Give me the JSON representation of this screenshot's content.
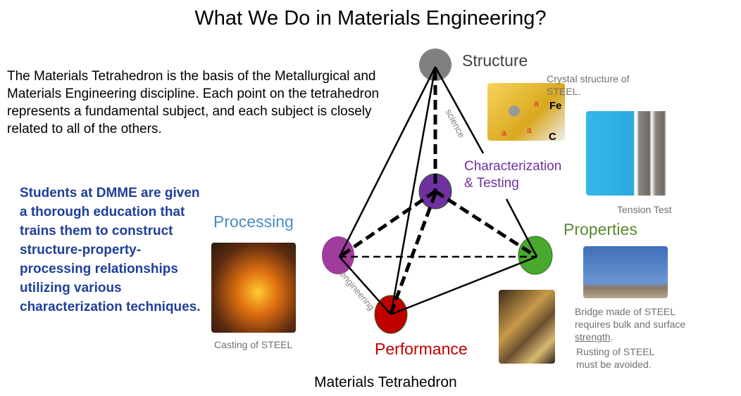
{
  "title": "What We Do in Materials Engineering?",
  "intro": "The Materials Tetrahedron is the basis of the Metallurgical and Materials Engineering discipline. Each point on the tetrahedron represents a fundamental subject, and each subject is closely related to all of the others.",
  "students": "Students at DMME are given a thorough education that trains them to construct structure-property-processing relationships utilizing various characterization techniques.",
  "nodes": {
    "structure": {
      "label": "Structure",
      "color": "#808080"
    },
    "characterization": {
      "label1": "Characterization",
      "label2": "& Testing",
      "color": "#7030a0"
    },
    "processing": {
      "label": "Processing",
      "color": "#a03c9c",
      "label_color": "#4a8bc4"
    },
    "properties": {
      "label": "Properties",
      "color": "#4aa82e",
      "label_color": "#5a8a2e"
    },
    "performance": {
      "label": "Performance",
      "color": "#c00000"
    }
  },
  "edge_labels": {
    "science": "science",
    "engineering": "engineering"
  },
  "captions": {
    "crystal": "Crystal structure of STEEL.",
    "fe": "Fe",
    "c": "C",
    "a": "a",
    "tension": "Tension Test",
    "casting": "Casting of STEEL",
    "bridge_1": "Bridge made of STEEL requires bulk and surface ",
    "bridge_strength": "strength",
    "bridge_end": ".",
    "rust": "Rusting of STEEL must be avoided."
  },
  "footer": "Materials Tetrahedron"
}
